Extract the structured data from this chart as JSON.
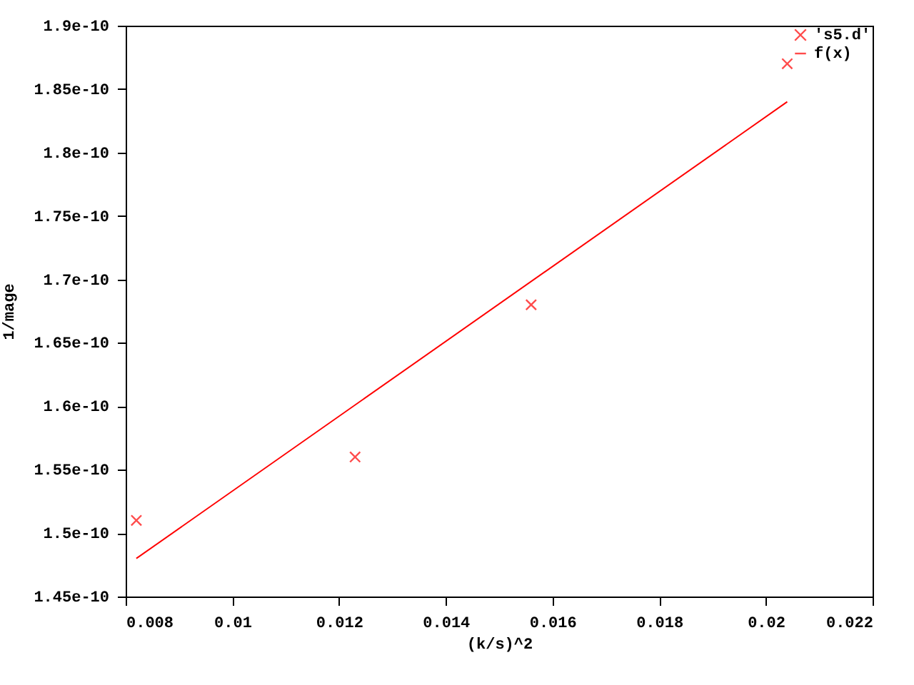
{
  "chart_data": {
    "type": "scatter",
    "xlabel": "(k/s)^2",
    "ylabel": "1/mage",
    "xlim": [
      0.008,
      0.022
    ],
    "xticks": [
      0.008,
      0.01,
      0.012,
      0.014,
      0.016,
      0.018,
      0.02,
      0.022
    ],
    "ylim": [
      1.45e-10,
      1.9e-10
    ],
    "yticks": [
      1.45e-10,
      1.5e-10,
      1.55e-10,
      1.6e-10,
      1.65e-10,
      1.7e-10,
      1.75e-10,
      1.8e-10,
      1.85e-10,
      1.9e-10
    ],
    "grid": false,
    "legend": "top right",
    "series": [
      {
        "name": "'s5.d'",
        "color": "#ff0000",
        "marker": "cross",
        "x": [
          0.0082,
          0.0123,
          0.0156,
          0.0204
        ],
        "values": [
          1.51e-10,
          1.56e-10,
          1.68e-10,
          1.87e-10
        ]
      },
      {
        "name": "f(x)",
        "type": "line",
        "color": "#ff0000",
        "x": [
          0.0082,
          0.0204
        ],
        "values": [
          1.48e-10,
          1.84e-10
        ]
      }
    ]
  }
}
